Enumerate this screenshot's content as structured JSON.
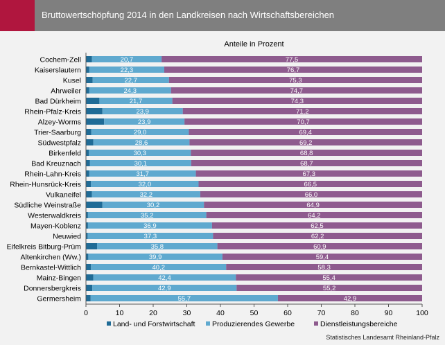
{
  "header": {
    "title": "Bruttowertschöpfung 2014 in den Landkreisen nach Wirtschaftsbereichen"
  },
  "source": "Statistisches Landesamt Rheinland-Pfalz",
  "chart_data": {
    "type": "bar",
    "orientation": "horizontal",
    "stacked": true,
    "subtitle": "Anteile in Prozent",
    "categories": [
      "Cochem-Zell",
      "Kaiserslautern",
      "Kusel",
      "Ahrweiler",
      "Bad Dürkheim",
      "Rhein-Pfalz-Kreis",
      "Alzey-Worms",
      "Trier-Saarburg",
      "Südwestpfalz",
      "Birkenfeld",
      "Bad Kreuznach",
      "Rhein-Lahn-Kreis",
      "Rhein-Hunsrück-Kreis",
      "Vulkaneifel",
      "Südliche Weinstraße",
      "Westerwaldkreis",
      "Mayen-Koblenz",
      "Neuwied",
      "Eifelkreis Bitburg-Prüm",
      "Altenkirchen (Ww.)",
      "Bernkastel-Wittlich",
      "Mainz-Bingen",
      "Donnersbergkreis",
      "Germersheim"
    ],
    "series": [
      {
        "name": "Land- und Forstwirtschaft",
        "color": "#1f6b96",
        "labeled": false,
        "values": [
          1.8,
          1.0,
          2.0,
          1.0,
          4.0,
          4.9,
          5.4,
          1.6,
          2.2,
          0.9,
          1.2,
          1.0,
          1.5,
          1.8,
          4.9,
          0.6,
          0.6,
          0.5,
          3.3,
          0.7,
          1.5,
          2.2,
          1.9,
          1.4
        ]
      },
      {
        "name": "Produzierendes Gewerbe",
        "color": "#5fa9cf",
        "labeled": true,
        "values": [
          20.7,
          22.3,
          22.7,
          24.3,
          21.7,
          23.9,
          23.9,
          29.0,
          28.6,
          30.3,
          30.1,
          31.7,
          32.0,
          32.2,
          30.2,
          35.2,
          36.9,
          37.3,
          35.8,
          39.9,
          40.2,
          42.4,
          42.9,
          55.7
        ]
      },
      {
        "name": "Dienstleistungsbereiche",
        "color": "#8e5b8e",
        "labeled": true,
        "values": [
          77.5,
          76.7,
          75.3,
          74.7,
          74.3,
          71.2,
          70.7,
          69.4,
          69.2,
          68.8,
          68.7,
          67.3,
          66.5,
          66.0,
          64.9,
          64.2,
          62.5,
          62.2,
          60.9,
          59.4,
          58.3,
          55.4,
          55.2,
          42.9
        ]
      }
    ],
    "xlim": [
      0,
      100
    ],
    "xticks": [
      0,
      10,
      20,
      30,
      40,
      50,
      60,
      70,
      80,
      90,
      100
    ],
    "grid": false,
    "legend_position": "bottom"
  }
}
